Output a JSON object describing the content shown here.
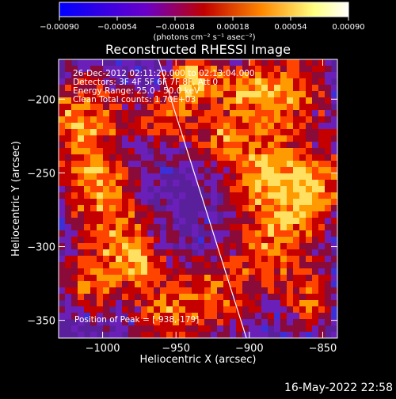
{
  "chart_data": {
    "type": "heatmap",
    "title": "Reconstructed RHESSI Image",
    "xlabel": "Heliocentric X (arcsec)",
    "ylabel": "Heliocentric Y (arcsec)",
    "xlim": [
      -1030,
      -840
    ],
    "ylim": [
      -362,
      -173
    ],
    "x_ticks": [
      -1000,
      -950,
      -900,
      -850
    ],
    "x_tick_labels": [
      "−1000",
      "−950",
      "−900",
      "−850"
    ],
    "y_ticks": [
      -200,
      -250,
      -300,
      -350
    ],
    "y_tick_labels": [
      "−200",
      "−250",
      "−300",
      "−350"
    ],
    "limb_line": {
      "x1": -962,
      "y1": -173,
      "x2": -902,
      "y2": -362
    },
    "colorbar": {
      "ticks": [
        -0.0009,
        -0.00054,
        -0.00018,
        0.00018,
        0.00054,
        0.0009
      ],
      "tick_labels": [
        "−0.00090",
        "−0.00054",
        "−0.00018",
        "0.00018",
        "0.00054",
        "0.00090"
      ],
      "unit_label": "(photons cm⁻² s⁻¹ asec⁻²)",
      "stops": [
        "#0000ff",
        "#6a00c8",
        "#c00000",
        "#ff8800",
        "#ffff80",
        "#ffffff"
      ]
    },
    "annotations": [
      "26-Dec-2012 02:11:20.000 to 02:13:04.000",
      "Detectors: 3F 4F 5F 6F 7F 8F, Att 0",
      "Energy Range: 25.0 - 50.0 keV",
      "Clean     Total counts: 1.70E+03"
    ],
    "peak_label": "Position of Peak = [-938,-179]",
    "footer_date": "16-May-2022 22:58"
  }
}
